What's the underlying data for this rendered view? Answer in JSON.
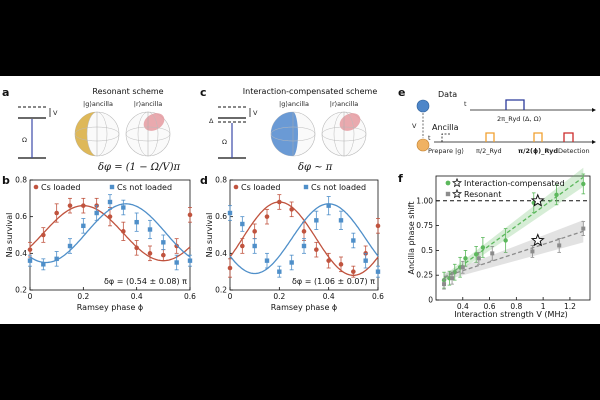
{
  "figure": {
    "panel_a": {
      "letter": "a",
      "title": "Resonant scheme",
      "ket_g": "|g⟩ancilla",
      "ket_r": "|r⟩ancilla",
      "label_V": "V",
      "label_Omega": "Ω",
      "formula": "δφ = (1 − Ω/V)π"
    },
    "panel_c": {
      "letter": "c",
      "title": "Interaction-compensated scheme",
      "ket_g": "|g⟩ancilla",
      "ket_r": "|r⟩ancilla",
      "label_Delta": "Δ",
      "label_V": "V",
      "label_Omega": "Ω",
      "formula": "δφ ~ π"
    },
    "panel_e": {
      "letter": "e",
      "data_label": "Data",
      "ancilla_label": "Ancilla",
      "coupling_label": "V",
      "t1": "t",
      "t2": "t",
      "pulse_data": "2π_Ryd (Δ, Ω)",
      "prepare": "Prepare |g⟩",
      "pi2_1": "π/2_Ryd",
      "pi2_2": "π/2(ϕ)_Ryd",
      "detection": "Detection"
    }
  },
  "chart_data": [
    {
      "id": "b",
      "letter": "b",
      "type": "scatter",
      "xlabel": "Ramsey phase ϕ",
      "ylabel": "Na survival",
      "xlim": [
        0,
        0.6
      ],
      "ylim": [
        0.2,
        0.8
      ],
      "xticks": [
        "0",
        "0.2",
        "0.4",
        "0.6"
      ],
      "yticks": [
        "0.2",
        "0.4",
        "0.6",
        "0.8"
      ],
      "annotation": "δφ = (0.54 ± 0.08) π",
      "legend_position": "top",
      "series": [
        {
          "name": "Cs loaded",
          "color": "#c0533e",
          "x": [
            0,
            0.05,
            0.1,
            0.15,
            0.2,
            0.25,
            0.3,
            0.35,
            0.4,
            0.45,
            0.5,
            0.55,
            0.6
          ],
          "y": [
            0.42,
            0.5,
            0.62,
            0.66,
            0.66,
            0.66,
            0.6,
            0.52,
            0.43,
            0.4,
            0.39,
            0.44,
            0.61
          ],
          "err": [
            0.04,
            0.04,
            0.05,
            0.04,
            0.04,
            0.04,
            0.05,
            0.05,
            0.04,
            0.04,
            0.03,
            0.04,
            0.04
          ],
          "fit": {
            "mean": 0.51,
            "amp": 0.15,
            "period": 0.6,
            "peak": 0.2
          }
        },
        {
          "name": "Cs not loaded",
          "color": "#4f8fc9",
          "x": [
            0,
            0.05,
            0.1,
            0.15,
            0.2,
            0.25,
            0.3,
            0.35,
            0.4,
            0.45,
            0.5,
            0.55,
            0.6
          ],
          "y": [
            0.36,
            0.34,
            0.37,
            0.44,
            0.55,
            0.62,
            0.68,
            0.65,
            0.57,
            0.53,
            0.46,
            0.35,
            0.36
          ],
          "err": [
            0.03,
            0.03,
            0.04,
            0.04,
            0.04,
            0.04,
            0.04,
            0.04,
            0.05,
            0.05,
            0.04,
            0.04,
            0.03
          ],
          "fit": {
            "mean": 0.51,
            "amp": 0.16,
            "period": 0.6,
            "peak": 0.36
          }
        }
      ]
    },
    {
      "id": "d",
      "letter": "d",
      "type": "scatter",
      "xlabel": "Ramsey phase ϕ",
      "ylabel": "Na survival",
      "xlim": [
        0,
        0.6
      ],
      "ylim": [
        0.2,
        0.8
      ],
      "xticks": [
        "0",
        "0.2",
        "0.4",
        "0.6"
      ],
      "yticks": [
        "0.2",
        "0.4",
        "0.6",
        "0.8"
      ],
      "annotation": "δφ = (1.06 ± 0.07) π",
      "legend_position": "top",
      "series": [
        {
          "name": "Cs loaded",
          "color": "#c0533e",
          "x": [
            0,
            0.05,
            0.1,
            0.15,
            0.2,
            0.25,
            0.3,
            0.35,
            0.4,
            0.45,
            0.5,
            0.55,
            0.6
          ],
          "y": [
            0.32,
            0.44,
            0.52,
            0.6,
            0.68,
            0.64,
            0.52,
            0.42,
            0.36,
            0.34,
            0.3,
            0.4,
            0.55
          ],
          "err": [
            0.05,
            0.04,
            0.04,
            0.04,
            0.04,
            0.04,
            0.05,
            0.04,
            0.04,
            0.04,
            0.03,
            0.04,
            0.04
          ],
          "fit": {
            "mean": 0.48,
            "amp": 0.2,
            "period": 0.6,
            "peak": 0.2
          }
        },
        {
          "name": "Cs not loaded",
          "color": "#4f8fc9",
          "x": [
            0,
            0.05,
            0.1,
            0.15,
            0.2,
            0.25,
            0.3,
            0.35,
            0.4,
            0.45,
            0.5,
            0.55,
            0.6
          ],
          "y": [
            0.62,
            0.56,
            0.44,
            0.36,
            0.3,
            0.35,
            0.44,
            0.58,
            0.66,
            0.58,
            0.47,
            0.36,
            0.3
          ],
          "err": [
            0.04,
            0.04,
            0.04,
            0.04,
            0.03,
            0.04,
            0.04,
            0.05,
            0.05,
            0.05,
            0.04,
            0.04,
            0.03
          ],
          "fit": {
            "mean": 0.48,
            "amp": 0.19,
            "period": 0.6,
            "peak": 0.4
          }
        }
      ]
    },
    {
      "id": "f",
      "letter": "f",
      "type": "scatter",
      "xlabel": "Interaction strength V (MHz)",
      "ylabel": "Ancilla phase shift",
      "xlim": [
        0.2,
        1.35
      ],
      "ylim": [
        0,
        1.25
      ],
      "xticks": [
        "0.4",
        "0.6",
        "0.8",
        "1",
        "1.2"
      ],
      "xtick_values": [
        0.4,
        0.6,
        0.8,
        1.0,
        1.2
      ],
      "yticks": [
        "0",
        "0.25",
        "0.5",
        "0.75",
        "1.00"
      ],
      "ytick_values": [
        0,
        0.25,
        0.5,
        0.75,
        1.0
      ],
      "reference_line": 1.0,
      "legend_position": "top-right",
      "series": [
        {
          "name": "Interaction-compensated",
          "color": "#5cb85c",
          "x": [
            0.26,
            0.3,
            0.34,
            0.38,
            0.42,
            0.5,
            0.55,
            0.72,
            0.93,
            1.1,
            1.3
          ],
          "y": [
            0.2,
            0.22,
            0.28,
            0.33,
            0.42,
            0.46,
            0.53,
            0.6,
            0.98,
            1.06,
            1.17
          ],
          "err": [
            0.08,
            0.07,
            0.08,
            0.1,
            0.08,
            0.08,
            0.1,
            0.12,
            0.1,
            0.1,
            0.1
          ],
          "marker": "circle",
          "star": [
            0.96,
            1.0
          ]
        },
        {
          "name": "Resonant",
          "color": "#8c8c8c",
          "x": [
            0.26,
            0.32,
            0.4,
            0.52,
            0.62,
            0.92,
            1.12,
            1.3
          ],
          "y": [
            0.16,
            0.22,
            0.33,
            0.42,
            0.47,
            0.49,
            0.55,
            0.72
          ],
          "err": [
            0.05,
            0.06,
            0.06,
            0.06,
            0.07,
            0.06,
            0.07,
            0.07
          ],
          "marker": "square",
          "star": [
            0.96,
            0.6
          ]
        }
      ]
    }
  ]
}
